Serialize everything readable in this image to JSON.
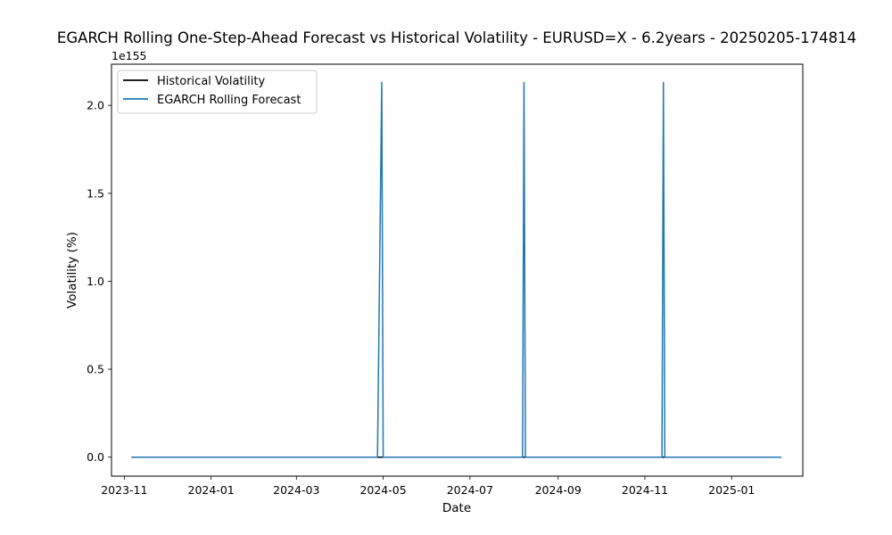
{
  "chart_data": {
    "type": "line",
    "title": "EGARCH Rolling One-Step-Ahead Forecast vs Historical Volatility - EURUSD=X - 6.2years - 20250205-174814",
    "xlabel": "Date",
    "ylabel": "Volatility (%)",
    "y_offset_label": "1e155",
    "x_range": [
      "2023-10-23",
      "2025-02-20"
    ],
    "ylim": [
      -0.108,
      2.234
    ],
    "y_unit_multiplier": "1e155",
    "x_ticks": [
      "2023-11",
      "2024-01",
      "2024-03",
      "2024-05",
      "2024-07",
      "2024-09",
      "2024-11",
      "2025-01"
    ],
    "y_ticks": [
      "0.0",
      "0.5",
      "1.0",
      "1.5",
      "2.0"
    ],
    "y_tick_values": [
      0.0,
      0.5,
      1.0,
      1.5,
      2.0
    ],
    "grid": false,
    "legend_position": "upper-left",
    "series": [
      {
        "name": "Historical Volatility",
        "color": "#000000",
        "points": [
          [
            "2023-11-06",
            0.0
          ],
          [
            "2025-02-05",
            0.0
          ]
        ]
      },
      {
        "name": "EGARCH Rolling Forecast",
        "color": "#1f77b4",
        "points": [
          [
            "2023-11-06",
            0.0
          ],
          [
            "2024-04-27",
            0.0
          ],
          [
            "2024-04-30",
            2.13
          ],
          [
            "2024-05-01",
            0.0
          ],
          [
            "2024-08-07",
            0.0
          ],
          [
            "2024-08-08",
            2.13
          ],
          [
            "2024-08-09",
            0.0
          ],
          [
            "2024-11-13",
            0.0
          ],
          [
            "2024-11-14",
            2.13
          ],
          [
            "2024-11-15",
            0.0
          ],
          [
            "2025-02-05",
            0.0
          ]
        ]
      }
    ]
  }
}
